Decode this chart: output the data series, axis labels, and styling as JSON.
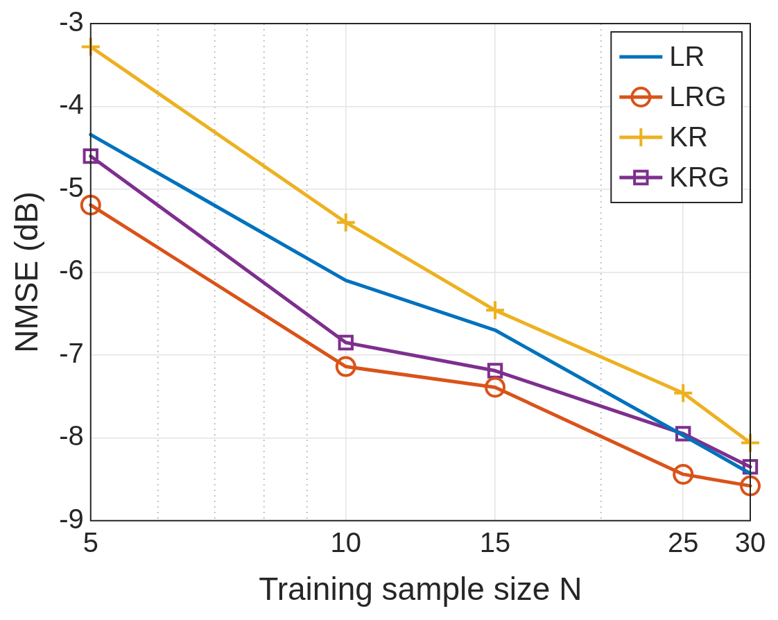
{
  "chart_data": {
    "type": "line",
    "xlabel": "Training sample size N",
    "ylabel": "NMSE (dB)",
    "log": "x",
    "x": [
      5,
      10,
      15,
      25,
      30
    ],
    "xlim": [
      5,
      30
    ],
    "xticks": [
      5,
      {
        "value": 6,
        "label": null
      },
      {
        "value": 7,
        "label": null
      },
      {
        "value": 8,
        "label": null
      },
      {
        "value": 9,
        "label": null
      },
      10,
      15,
      {
        "value": 20,
        "label": null
      },
      25,
      30
    ],
    "ylim": [
      -9,
      -3
    ],
    "yticks": [
      -9,
      -8,
      -7,
      -6,
      -5,
      -4,
      -3
    ],
    "grid": true,
    "legend": "top right",
    "line_style": "solid",
    "series": [
      {
        "name": "LR",
        "color": "#0072bd",
        "marker": "none",
        "values": [
          -4.34,
          -6.1,
          -6.7,
          -7.97,
          -8.43
        ]
      },
      {
        "name": "LRG",
        "color": "#d95319",
        "marker": "circle",
        "values": [
          -5.19,
          -7.14,
          -7.39,
          -8.44,
          -8.58
        ]
      },
      {
        "name": "KR",
        "color": "#edb120",
        "marker": "cross",
        "values": [
          -3.28,
          -5.4,
          -6.46,
          -7.46,
          -8.06
        ]
      },
      {
        "name": "KRG",
        "color": "#7e2f8e",
        "marker": "square",
        "values": [
          -4.6,
          -6.85,
          -7.19,
          -7.95,
          -8.35
        ]
      }
    ]
  }
}
